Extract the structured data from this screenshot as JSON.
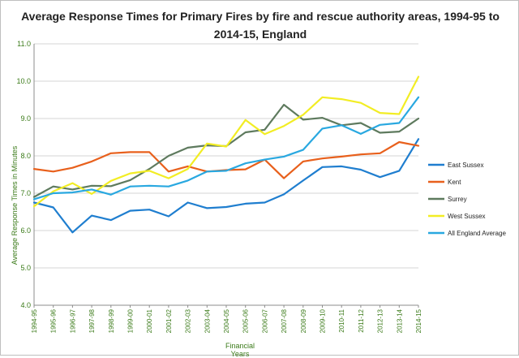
{
  "chart_data": {
    "type": "line",
    "title": "Average Response Times for Primary Fires by fire and rescue authority areas, 1994-95 to 2014-15, England",
    "xlabel": "Financial Years",
    "ylabel": "Average Response Times in Minutes",
    "ylim": [
      4.0,
      11.0
    ],
    "yticks": [
      "4.0",
      "5.0",
      "6.0",
      "7.0",
      "8.0",
      "9.0",
      "10.0",
      "11.0"
    ],
    "grid": true,
    "legend_position": "right",
    "categories": [
      "1994-95",
      "1995-96",
      "1996-97",
      "1997-98",
      "1998-99",
      "1999-00",
      "2000-01",
      "2001-02",
      "2002-03",
      "2003-04",
      "2004-05",
      "2005-06",
      "2006-07",
      "2007-08",
      "2008-09",
      "2009-10",
      "2010-11",
      "2011-12",
      "2012-13",
      "2013-14",
      "2014-15"
    ],
    "series": [
      {
        "name": "East Sussex",
        "color": "#1f7ecf",
        "values": [
          6.75,
          6.62,
          5.95,
          6.4,
          6.28,
          6.53,
          6.56,
          6.38,
          6.75,
          6.6,
          6.63,
          6.72,
          6.75,
          6.97,
          7.34,
          7.7,
          7.72,
          7.63,
          7.43,
          7.6,
          8.45
        ]
      },
      {
        "name": "Kent",
        "color": "#e8601c",
        "values": [
          7.65,
          7.58,
          7.68,
          7.85,
          8.07,
          8.1,
          8.1,
          7.58,
          7.72,
          7.58,
          7.62,
          7.64,
          7.9,
          7.4,
          7.85,
          7.93,
          7.98,
          8.04,
          8.07,
          8.37,
          8.27
        ]
      },
      {
        "name": "Surrey",
        "color": "#5e7a5e",
        "values": [
          6.9,
          7.18,
          7.1,
          7.2,
          7.19,
          7.35,
          7.65,
          8.0,
          8.22,
          8.28,
          8.26,
          8.63,
          8.7,
          9.37,
          8.97,
          9.02,
          8.82,
          8.88,
          8.62,
          8.65,
          9.0
        ]
      },
      {
        "name": "West Sussex",
        "color": "#f2ed24",
        "values": [
          6.65,
          7.05,
          7.27,
          6.98,
          7.33,
          7.53,
          7.6,
          7.4,
          7.65,
          8.33,
          8.25,
          8.96,
          8.58,
          8.8,
          9.1,
          9.57,
          9.52,
          9.42,
          9.15,
          9.12,
          10.12
        ]
      },
      {
        "name": "All England Average",
        "color": "#29a8e0",
        "values": [
          6.84,
          7.0,
          7.02,
          7.1,
          6.96,
          7.18,
          7.2,
          7.18,
          7.34,
          7.58,
          7.6,
          7.8,
          7.9,
          7.98,
          8.16,
          8.73,
          8.82,
          8.59,
          8.83,
          8.88,
          9.57
        ]
      }
    ]
  }
}
